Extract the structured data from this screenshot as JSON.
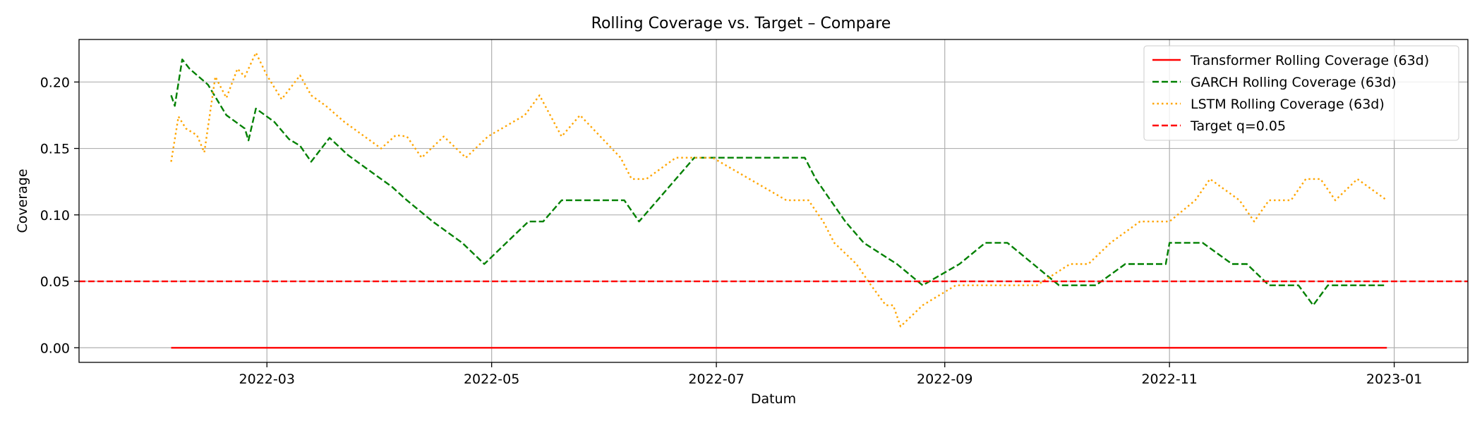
{
  "chart_data": {
    "type": "line",
    "title": "Rolling Coverage vs. Target – Compare",
    "xlabel": "Datum",
    "ylabel": "Coverage",
    "xlim": [
      "2022-01-09",
      "2023-01-21"
    ],
    "ylim": [
      -0.011,
      0.232
    ],
    "xticks": [
      "2022-03",
      "2022-05",
      "2022-07",
      "2022-09",
      "2022-11",
      "2023-01"
    ],
    "xtick_dates": [
      "2022-03-01",
      "2022-05-01",
      "2022-07-01",
      "2022-09-01",
      "2022-11-01",
      "2023-01-01"
    ],
    "yticks": [
      0.0,
      0.05,
      0.1,
      0.15,
      0.2
    ],
    "ytick_labels": [
      "0.00",
      "0.05",
      "0.10",
      "0.15",
      "0.20"
    ],
    "grid": true,
    "legend_position": "top-right",
    "series": [
      {
        "name": "Transformer Rolling Coverage (63d)",
        "color": "#ff0000",
        "style": "solid",
        "x": [
          "2022-02-03",
          "2022-12-30"
        ],
        "y": [
          0.0,
          0.0
        ]
      },
      {
        "name": "GARCH Rolling Coverage (63d)",
        "color": "#008000",
        "style": "dashed",
        "x": [
          "2022-02-03",
          "2022-02-04",
          "2022-02-06",
          "2022-02-08",
          "2022-02-13",
          "2022-02-18",
          "2022-02-23",
          "2022-02-24",
          "2022-02-26",
          "2022-03-03",
          "2022-03-07",
          "2022-03-10",
          "2022-03-13",
          "2022-03-18",
          "2022-03-23",
          "2022-03-30",
          "2022-04-04",
          "2022-04-08",
          "2022-04-15",
          "2022-04-23",
          "2022-04-29",
          "2022-05-05",
          "2022-05-11",
          "2022-05-15",
          "2022-05-20",
          "2022-05-28",
          "2022-06-01",
          "2022-06-06",
          "2022-06-10",
          "2022-06-15",
          "2022-06-20",
          "2022-06-25",
          "2022-07-05",
          "2022-07-15",
          "2022-07-25",
          "2022-07-28",
          "2022-08-01",
          "2022-08-05",
          "2022-08-10",
          "2022-08-19",
          "2022-08-26",
          "2022-09-05",
          "2022-09-12",
          "2022-09-18",
          "2022-09-25",
          "2022-10-02",
          "2022-10-06",
          "2022-10-12",
          "2022-10-20",
          "2022-10-31",
          "2022-11-01",
          "2022-11-10",
          "2022-11-18",
          "2022-11-22",
          "2022-11-28",
          "2022-12-06",
          "2022-12-10",
          "2022-12-14",
          "2022-12-20",
          "2022-12-30"
        ],
        "y": [
          0.19,
          0.182,
          0.217,
          0.21,
          0.198,
          0.175,
          0.165,
          0.156,
          0.18,
          0.17,
          0.157,
          0.152,
          0.14,
          0.158,
          0.145,
          0.131,
          0.121,
          0.111,
          0.095,
          0.079,
          0.063,
          0.079,
          0.095,
          0.095,
          0.111,
          0.111,
          0.111,
          0.111,
          0.095,
          0.111,
          0.127,
          0.143,
          0.143,
          0.143,
          0.143,
          0.127,
          0.111,
          0.095,
          0.079,
          0.063,
          0.047,
          0.063,
          0.079,
          0.079,
          0.063,
          0.047,
          0.047,
          0.047,
          0.063,
          0.063,
          0.079,
          0.079,
          0.063,
          0.063,
          0.047,
          0.047,
          0.032,
          0.047,
          0.047,
          0.047
        ]
      },
      {
        "name": "LSTM Rolling Coverage (63d)",
        "color": "#ffa500",
        "style": "dotted",
        "x": [
          "2022-02-03",
          "2022-02-05",
          "2022-02-07",
          "2022-02-10",
          "2022-02-12",
          "2022-02-15",
          "2022-02-18",
          "2022-02-21",
          "2022-02-23",
          "2022-02-26",
          "2022-03-01",
          "2022-03-05",
          "2022-03-10",
          "2022-03-13",
          "2022-03-17",
          "2022-03-22",
          "2022-03-28",
          "2022-04-01",
          "2022-04-05",
          "2022-04-08",
          "2022-04-12",
          "2022-04-18",
          "2022-04-24",
          "2022-04-30",
          "2022-05-10",
          "2022-05-14",
          "2022-05-20",
          "2022-05-25",
          "2022-06-05",
          "2022-06-08",
          "2022-06-12",
          "2022-06-20",
          "2022-06-30",
          "2022-07-10",
          "2022-07-20",
          "2022-07-26",
          "2022-07-30",
          "2022-08-02",
          "2022-08-08",
          "2022-08-12",
          "2022-08-16",
          "2022-08-18",
          "2022-08-20",
          "2022-08-26",
          "2022-09-04",
          "2022-09-15",
          "2022-09-26",
          "2022-10-05",
          "2022-10-10",
          "2022-10-16",
          "2022-10-24",
          "2022-10-30",
          "2022-11-01",
          "2022-11-08",
          "2022-11-12",
          "2022-11-20",
          "2022-11-24",
          "2022-11-28",
          "2022-12-04",
          "2022-12-08",
          "2022-12-12",
          "2022-12-16",
          "2022-12-22",
          "2022-12-30"
        ],
        "y": [
          0.14,
          0.174,
          0.165,
          0.16,
          0.147,
          0.204,
          0.188,
          0.21,
          0.204,
          0.222,
          0.205,
          0.187,
          0.205,
          0.19,
          0.182,
          0.17,
          0.158,
          0.15,
          0.16,
          0.159,
          0.143,
          0.159,
          0.143,
          0.159,
          0.175,
          0.19,
          0.159,
          0.175,
          0.143,
          0.127,
          0.127,
          0.143,
          0.143,
          0.127,
          0.111,
          0.111,
          0.095,
          0.079,
          0.063,
          0.047,
          0.032,
          0.032,
          0.016,
          0.032,
          0.047,
          0.047,
          0.047,
          0.063,
          0.063,
          0.079,
          0.095,
          0.095,
          0.095,
          0.111,
          0.127,
          0.111,
          0.095,
          0.111,
          0.111,
          0.127,
          0.127,
          0.111,
          0.127,
          0.111
        ]
      },
      {
        "name": "Target q=0.05",
        "color": "#ff0000",
        "style": "dashed",
        "hline": 0.05
      }
    ]
  }
}
